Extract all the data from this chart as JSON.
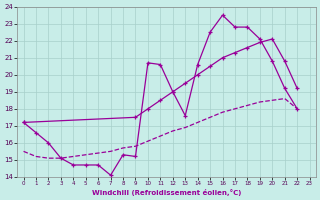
{
  "xlabel": "Windchill (Refroidissement éolien,°C)",
  "bg_color": "#c8ede8",
  "grid_color": "#a8d0cb",
  "line_color": "#990099",
  "ylim": [
    14,
    24
  ],
  "xlim": [
    -0.5,
    23.5
  ],
  "yticks": [
    14,
    15,
    16,
    17,
    18,
    19,
    20,
    21,
    22,
    23,
    24
  ],
  "xticks": [
    0,
    1,
    2,
    3,
    4,
    5,
    6,
    7,
    8,
    9,
    10,
    11,
    12,
    13,
    14,
    15,
    16,
    17,
    18,
    19,
    20,
    21,
    22,
    23
  ],
  "line1_x": [
    0,
    1,
    2,
    3,
    4,
    5,
    6,
    7,
    8,
    9,
    10,
    11,
    12,
    13,
    14,
    15,
    16,
    17,
    18,
    19,
    20,
    21,
    22
  ],
  "line1_y": [
    17.2,
    16.6,
    16.0,
    15.1,
    14.7,
    14.7,
    14.7,
    14.1,
    15.3,
    15.2,
    20.7,
    20.6,
    19.0,
    17.6,
    20.6,
    22.5,
    23.5,
    22.8,
    22.8,
    22.1,
    20.8,
    19.2,
    18.0
  ],
  "line2_x": [
    0,
    9,
    10,
    11,
    12,
    13,
    14,
    15,
    16,
    17,
    18,
    19,
    20,
    21,
    22
  ],
  "line2_y": [
    17.2,
    17.5,
    18.0,
    18.5,
    19.0,
    19.5,
    20.0,
    20.5,
    21.0,
    21.3,
    21.6,
    21.9,
    22.1,
    20.8,
    19.2
  ],
  "line3_x": [
    0,
    1,
    2,
    3,
    4,
    5,
    6,
    7,
    8,
    9,
    10,
    11,
    12,
    13,
    14,
    15,
    16,
    17,
    18,
    19,
    20,
    21,
    22
  ],
  "line3_y": [
    15.5,
    15.2,
    15.1,
    15.1,
    15.2,
    15.3,
    15.4,
    15.5,
    15.7,
    15.8,
    16.1,
    16.4,
    16.7,
    16.9,
    17.2,
    17.5,
    17.8,
    18.0,
    18.2,
    18.4,
    18.5,
    18.6,
    18.0
  ]
}
